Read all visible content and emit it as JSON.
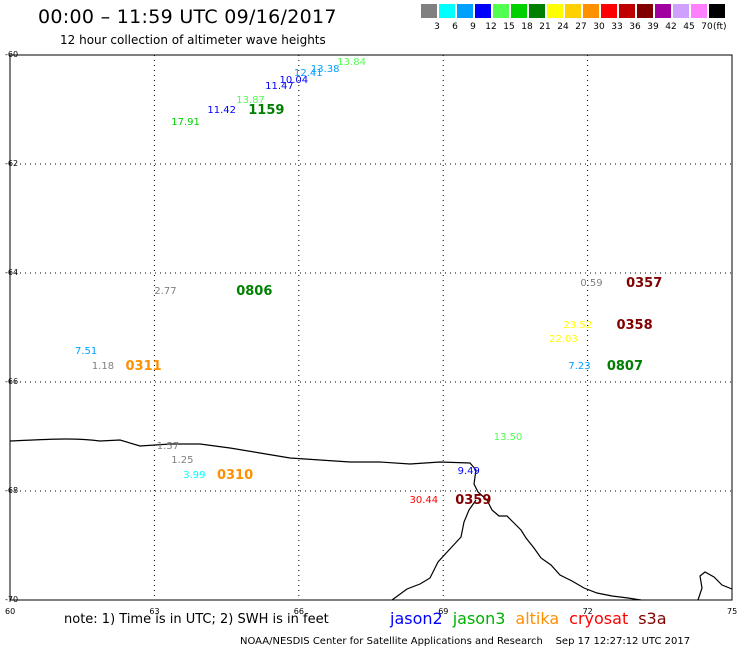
{
  "header": {
    "title": "00:00 – 11:59 UTC 09/16/2017",
    "subtitle": "12 hour collection of altimeter wave heights"
  },
  "color_scale": {
    "unit": "(ft)",
    "bins": [
      {
        "label": "3",
        "color": "#808080"
      },
      {
        "label": "6",
        "color": "#00ffff"
      },
      {
        "label": "9",
        "color": "#00a0ff"
      },
      {
        "label": "12",
        "color": "#0000ff"
      },
      {
        "label": "15",
        "color": "#50ff50"
      },
      {
        "label": "18",
        "color": "#00d000"
      },
      {
        "label": "21",
        "color": "#008000"
      },
      {
        "label": "24",
        "color": "#ffff00"
      },
      {
        "label": "27",
        "color": "#ffd000"
      },
      {
        "label": "30",
        "color": "#ff9000"
      },
      {
        "label": "33",
        "color": "#ff0000"
      },
      {
        "label": "36",
        "color": "#c00000"
      },
      {
        "label": "39",
        "color": "#800000"
      },
      {
        "label": "42",
        "color": "#a000a0"
      },
      {
        "label": "45",
        "color": "#d0a0ff"
      },
      {
        "label": "70",
        "color": "#ff80ff"
      },
      {
        "label": "",
        "color": "#000000"
      }
    ]
  },
  "map": {
    "lat_labels": [
      "-60",
      "-62",
      "-64",
      "-66",
      "-68",
      "-70"
    ],
    "lon_labels": [
      "60",
      "63",
      "66",
      "69",
      "72",
      "75"
    ],
    "lon_range": [
      60,
      75
    ],
    "lat_range": [
      -60,
      -70
    ]
  },
  "observations": [
    {
      "text": "13.84",
      "lon": 66.8,
      "lat": -60.15,
      "color": "#50ff50",
      "kind": "val"
    },
    {
      "text": "13.38",
      "lon": 66.25,
      "lat": -60.27,
      "color": "#00a0ff",
      "kind": "val"
    },
    {
      "text": "12.41",
      "lon": 65.9,
      "lat": -60.35,
      "color": "#00a0ff",
      "kind": "val"
    },
    {
      "text": "10.04",
      "lon": 65.6,
      "lat": -60.48,
      "color": "#0000ff",
      "kind": "val"
    },
    {
      "text": "11.47",
      "lon": 65.3,
      "lat": -60.58,
      "color": "#0000ff",
      "kind": "val"
    },
    {
      "text": "13.87",
      "lon": 64.7,
      "lat": -60.85,
      "color": "#50ff50",
      "kind": "val"
    },
    {
      "text": "11.42",
      "lon": 64.1,
      "lat": -61.03,
      "color": "#0000ff",
      "kind": "val"
    },
    {
      "text": "17.91",
      "lon": 63.35,
      "lat": -61.25,
      "color": "#00d000",
      "kind": "val"
    },
    {
      "text": "1159",
      "lon": 64.95,
      "lat": -61.03,
      "color": "#008000",
      "kind": "time"
    },
    {
      "text": "2.77",
      "lon": 63.0,
      "lat": -64.35,
      "color": "#808080",
      "kind": "val"
    },
    {
      "text": "0806",
      "lon": 64.7,
      "lat": -64.35,
      "color": "#008000",
      "kind": "time"
    },
    {
      "text": "7.51",
      "lon": 61.35,
      "lat": -65.45,
      "color": "#00a0ff",
      "kind": "val"
    },
    {
      "text": "1.18",
      "lon": 61.7,
      "lat": -65.72,
      "color": "#808080",
      "kind": "val"
    },
    {
      "text": "0311",
      "lon": 62.4,
      "lat": -65.72,
      "color": "#ff9000",
      "kind": "time"
    },
    {
      "text": "1.57",
      "lon": 63.05,
      "lat": -67.2,
      "color": "#808080",
      "kind": "val"
    },
    {
      "text": "1.25",
      "lon": 63.35,
      "lat": -67.45,
      "color": "#808080",
      "kind": "val"
    },
    {
      "text": "3.99",
      "lon": 63.6,
      "lat": -67.72,
      "color": "#00ffff",
      "kind": "val"
    },
    {
      "text": "0310",
      "lon": 64.3,
      "lat": -67.72,
      "color": "#ff9000",
      "kind": "time"
    },
    {
      "text": "0.59",
      "lon": 71.85,
      "lat": -64.2,
      "color": "#808080",
      "kind": "val"
    },
    {
      "text": "0357",
      "lon": 72.8,
      "lat": -64.2,
      "color": "#800000",
      "kind": "time"
    },
    {
      "text": "23.52",
      "lon": 71.5,
      "lat": -64.97,
      "color": "#ffff00",
      "kind": "val"
    },
    {
      "text": "0358",
      "lon": 72.6,
      "lat": -64.97,
      "color": "#800000",
      "kind": "time"
    },
    {
      "text": "22.03",
      "lon": 71.2,
      "lat": -65.23,
      "color": "#ffff00",
      "kind": "val"
    },
    {
      "text": "7.23",
      "lon": 71.6,
      "lat": -65.72,
      "color": "#00a0ff",
      "kind": "val"
    },
    {
      "text": "0807",
      "lon": 72.4,
      "lat": -65.72,
      "color": "#008000",
      "kind": "time"
    },
    {
      "text": "13.50",
      "lon": 70.05,
      "lat": -67.03,
      "color": "#50ff50",
      "kind": "val"
    },
    {
      "text": "9.49",
      "lon": 69.3,
      "lat": -67.65,
      "color": "#0000ff",
      "kind": "val"
    },
    {
      "text": "30.44",
      "lon": 68.3,
      "lat": -68.18,
      "color": "#ff0000",
      "kind": "val"
    },
    {
      "text": "0359",
      "lon": 69.25,
      "lat": -68.18,
      "color": "#800000",
      "kind": "time"
    }
  ],
  "note": "note: 1) Time is in UTC; 2) SWH is in feet",
  "legend": [
    {
      "name": "jason2",
      "color": "#0000ff"
    },
    {
      "name": "jason3",
      "color": "#00b000"
    },
    {
      "name": "altika",
      "color": "#ff9000"
    },
    {
      "name": "cryosat",
      "color": "#ff0000"
    },
    {
      "name": "s3a",
      "color": "#800000"
    }
  ],
  "footer": {
    "credit": "NOAA/NESDIS Center for Satellite Applications and Research",
    "timestamp": "Sep 17 12:27:12 UTC 2017"
  }
}
